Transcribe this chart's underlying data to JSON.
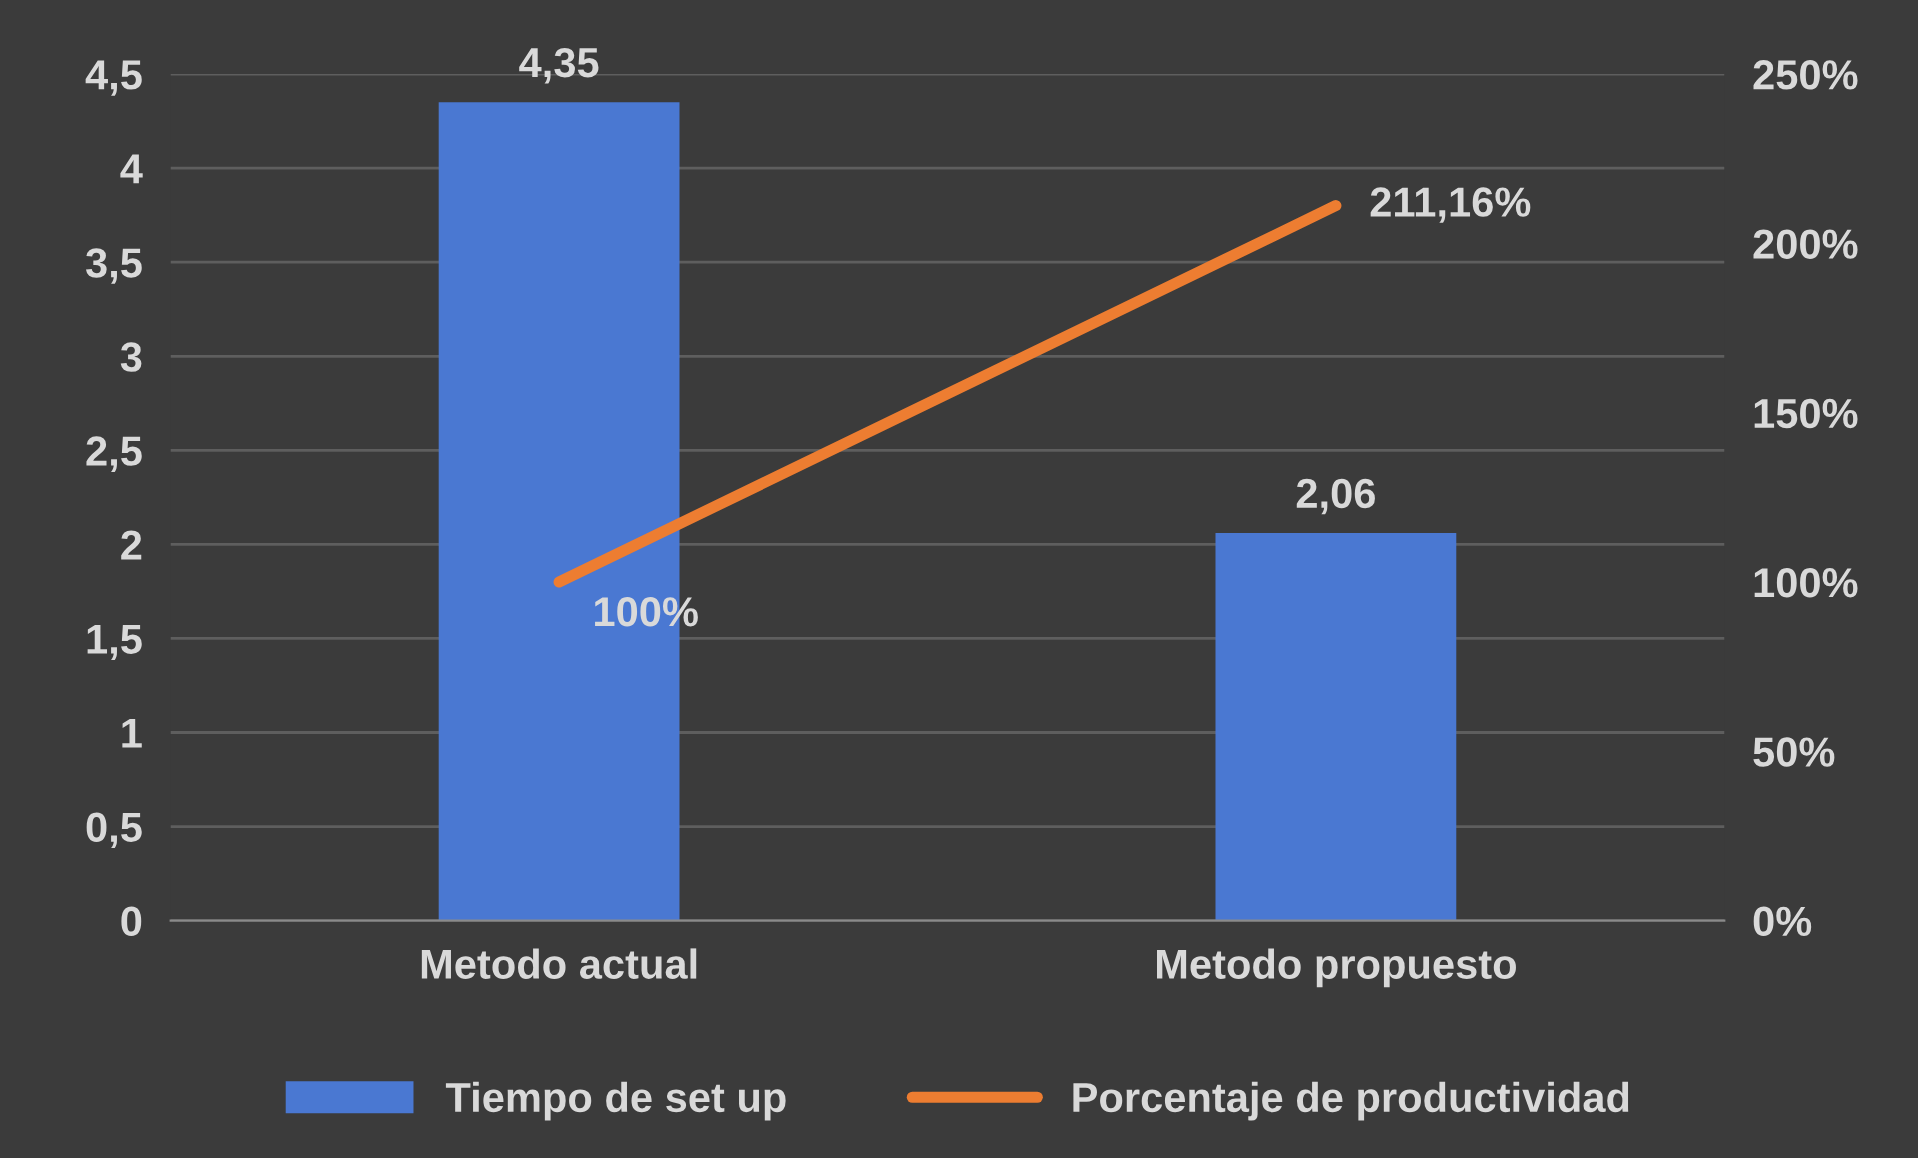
{
  "chart_data": {
    "type": "bar",
    "categories": [
      "Metodo actual",
      "Metodo propuesto"
    ],
    "series": [
      {
        "name": "Tiempo de set up",
        "color": "#4a78d2",
        "values": [
          4.35,
          2.06
        ],
        "value_labels": [
          "4,35",
          "2,06"
        ]
      },
      {
        "name": "Porcentaje de productividad",
        "type": "line",
        "axis": "y2",
        "color": "#ed7d31",
        "values": [
          100,
          211.16
        ],
        "value_labels": [
          "100%",
          "211,16%"
        ]
      }
    ],
    "ylim": [
      0,
      4.5
    ],
    "yticks": [
      0,
      {
        "value": 0.5,
        "label": "0,5"
      },
      1,
      {
        "value": 1.5,
        "label": "1,5"
      },
      2,
      {
        "value": 2.5,
        "label": "2,5"
      },
      3,
      {
        "value": 3.5,
        "label": "3,5"
      },
      4,
      {
        "value": 4.5,
        "label": "4,5"
      }
    ],
    "y2lim": [
      0,
      250
    ],
    "y2ticks": [
      {
        "value": 0,
        "label": "0%"
      },
      {
        "value": 50,
        "label": "50%"
      },
      {
        "value": 100,
        "label": "100%"
      },
      {
        "value": 150,
        "label": "150%"
      },
      {
        "value": 200,
        "label": "200%"
      },
      {
        "value": 250,
        "label": "250%"
      }
    ],
    "grid": "y",
    "legend": "bottom",
    "marker": "none",
    "line_style": "solid"
  }
}
